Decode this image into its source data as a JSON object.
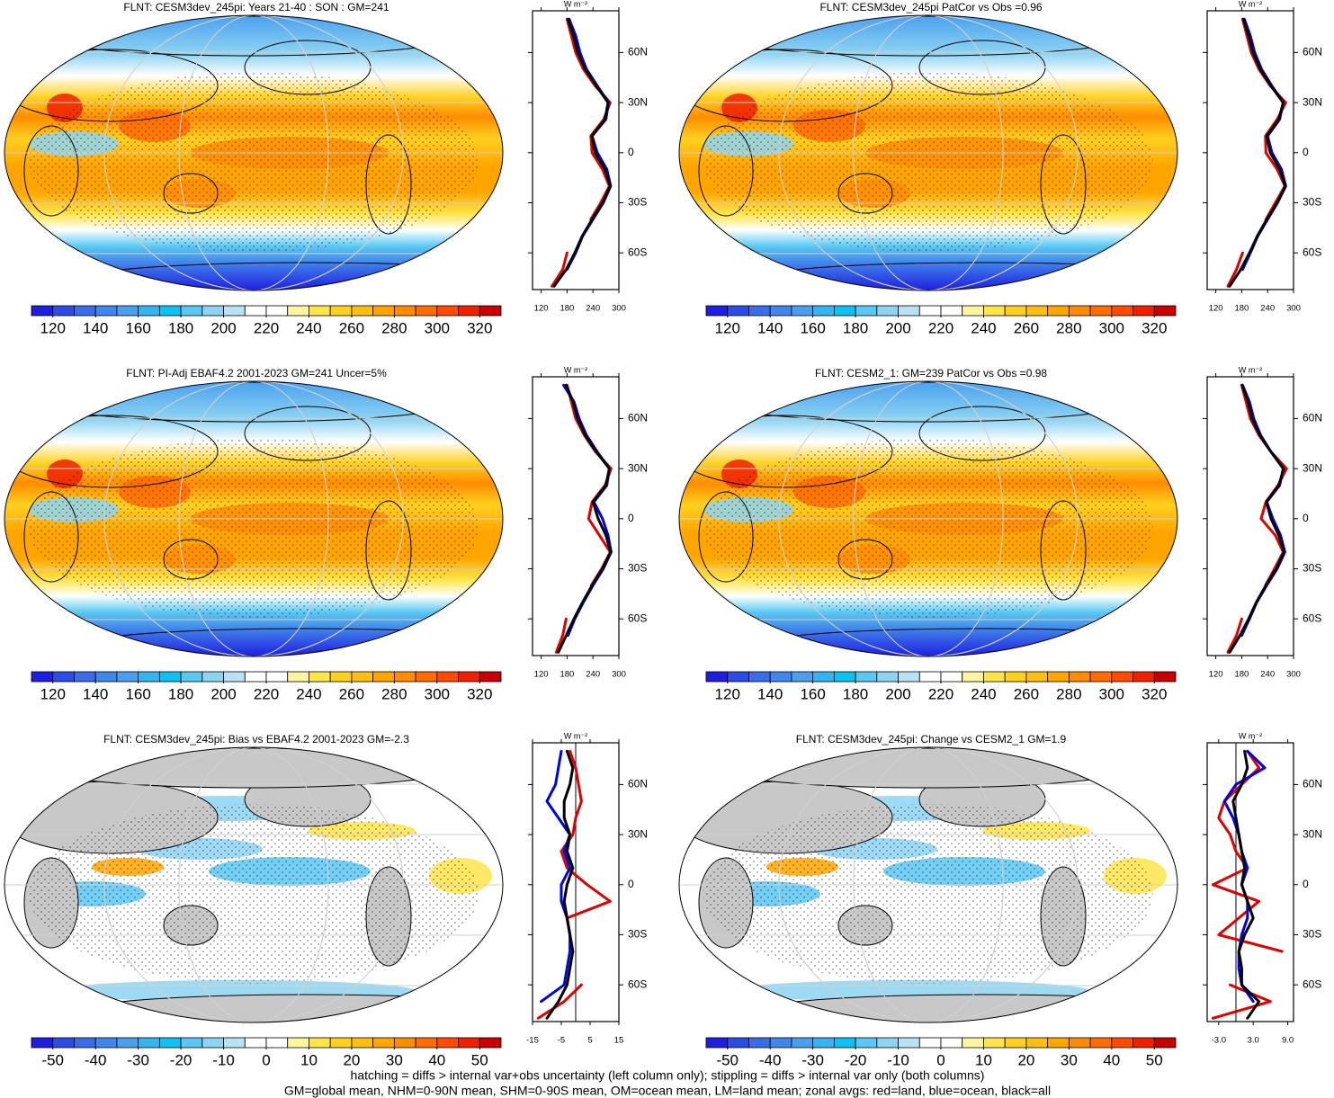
{
  "chart_data": [
    {
      "type": "map",
      "title": "FLNT: CESM3dev_245pi: Years 21-40 : SON : GM=241",
      "colorbar": {
        "lim": [
          110,
          330
        ],
        "ticks": [
          120,
          140,
          160,
          180,
          200,
          220,
          240,
          260,
          280,
          300,
          320
        ],
        "colors": [
          "#1e1ee0",
          "#2b4de6",
          "#3a6ee8",
          "#3f88ea",
          "#4aa0ee",
          "#36b4f0",
          "#10c0f0",
          "#5ac8f2",
          "#8ed4f2",
          "#b8e2f6",
          "#ffffff",
          "#ffffff",
          "#fff5a0",
          "#ffe44a",
          "#ffd020",
          "#ffbe14",
          "#ffa500",
          "#ff8c00",
          "#ff6c00",
          "#ff4a00",
          "#f02000",
          "#c80000"
        ]
      }
    },
    {
      "type": "line",
      "unit_label": "W m⁻²",
      "x": [
        -80,
        -70,
        -60,
        -50,
        -40,
        -30,
        -20,
        -10,
        0,
        10,
        20,
        30,
        40,
        50,
        60,
        70,
        80
      ],
      "xlim": [
        -82,
        85
      ],
      "xticks": [
        {
          "value": -60,
          "label": "60S"
        },
        {
          "value": -30,
          "label": "30S"
        },
        0,
        {
          "value": 30,
          "label": "30N"
        },
        {
          "value": 60,
          "label": "60N"
        }
      ],
      "ylim": [
        100,
        300
      ],
      "yticks": [
        120,
        180,
        240,
        300
      ],
      "series": [
        {
          "color": "#e00000",
          "values": [
            145,
            170,
            180,
            null,
            235,
            258,
            278,
            262,
            238,
            235,
            265,
            280,
            245,
            218,
            200,
            190,
            180
          ]
        },
        {
          "color": "#0000e0",
          "values": [
            null,
            180,
            200,
            216,
            240,
            264,
            281,
            272,
            250,
            238,
            270,
            276,
            250,
            225,
            210,
            200,
            185
          ]
        },
        {
          "color": "#000000",
          "values": [
            150,
            178,
            198,
            215,
            238,
            262,
            280,
            268,
            245,
            238,
            268,
            275,
            248,
            222,
            205,
            195,
            182
          ]
        }
      ]
    },
    {
      "type": "map",
      "title": "FLNT: CESM3dev_245pi PatCor vs Obs =0.96",
      "colorbar": {
        "lim": [
          110,
          330
        ],
        "ticks": [
          120,
          140,
          160,
          180,
          200,
          220,
          240,
          260,
          280,
          300,
          320
        ],
        "colors": [
          "#1e1ee0",
          "#2b4de6",
          "#3a6ee8",
          "#3f88ea",
          "#4aa0ee",
          "#36b4f0",
          "#10c0f0",
          "#5ac8f2",
          "#8ed4f2",
          "#b8e2f6",
          "#ffffff",
          "#ffffff",
          "#fff5a0",
          "#ffe44a",
          "#ffd020",
          "#ffbe14",
          "#ffa500",
          "#ff8c00",
          "#ff6c00",
          "#ff4a00",
          "#f02000",
          "#c80000"
        ]
      }
    },
    {
      "type": "line",
      "unit_label": "W m⁻²",
      "x": [
        -80,
        -70,
        -60,
        -50,
        -40,
        -30,
        -20,
        -10,
        0,
        10,
        20,
        30,
        40,
        50,
        60,
        70,
        80
      ],
      "xlim": [
        -82,
        85
      ],
      "xticks": [
        {
          "value": -60,
          "label": "60S"
        },
        {
          "value": -30,
          "label": "30S"
        },
        0,
        {
          "value": 30,
          "label": "30N"
        },
        {
          "value": 60,
          "label": "60N"
        }
      ],
      "ylim": [
        100,
        300
      ],
      "yticks": [
        120,
        180,
        240,
        300
      ],
      "series": [
        {
          "color": "#e00000",
          "values": [
            148,
            168,
            182,
            null,
            236,
            258,
            280,
            262,
            236,
            235,
            262,
            282,
            246,
            220,
            202,
            192,
            182
          ]
        },
        {
          "color": "#0000e0",
          "values": [
            null,
            182,
            200,
            217,
            240,
            263,
            282,
            272,
            250,
            240,
            268,
            276,
            250,
            226,
            210,
            200,
            186
          ]
        },
        {
          "color": "#000000",
          "values": [
            152,
            178,
            198,
            216,
            238,
            262,
            281,
            268,
            246,
            238,
            266,
            276,
            248,
            223,
            206,
            196,
            184
          ]
        }
      ]
    },
    {
      "type": "map",
      "title": "FLNT: PI-Adj EBAF4.2 2001-2023 GM=241 Uncer=5%",
      "colorbar": {
        "lim": [
          110,
          330
        ],
        "ticks": [
          120,
          140,
          160,
          180,
          200,
          220,
          240,
          260,
          280,
          300,
          320
        ],
        "colors": [
          "#1e1ee0",
          "#2b4de6",
          "#3a6ee8",
          "#3f88ea",
          "#4aa0ee",
          "#36b4f0",
          "#10c0f0",
          "#5ac8f2",
          "#8ed4f2",
          "#b8e2f6",
          "#ffffff",
          "#ffffff",
          "#fff5a0",
          "#ffe44a",
          "#ffd020",
          "#ffbe14",
          "#ffa500",
          "#ff8c00",
          "#ff6c00",
          "#ff4a00",
          "#f02000",
          "#c80000"
        ]
      }
    },
    {
      "type": "line",
      "unit_label": "W m⁻²",
      "x": [
        -80,
        -70,
        -60,
        -50,
        -40,
        -30,
        -20,
        -10,
        0,
        10,
        20,
        30,
        40,
        50,
        60,
        70,
        80
      ],
      "xlim": [
        -82,
        85
      ],
      "xticks": [
        {
          "value": -60,
          "label": "60S"
        },
        {
          "value": -30,
          "label": "30S"
        },
        0,
        {
          "value": 30,
          "label": "30N"
        },
        {
          "value": 60,
          "label": "60N"
        }
      ],
      "ylim": [
        100,
        300
      ],
      "yticks": [
        120,
        180,
        240,
        300
      ],
      "series": [
        {
          "color": "#e00000",
          "values": [
            155,
            170,
            178,
            null,
            236,
            260,
            280,
            255,
            230,
            238,
            268,
            282,
            246,
            220,
            200,
            190,
            180
          ]
        },
        {
          "color": "#0000e0",
          "values": [
            null,
            182,
            198,
            218,
            240,
            264,
            282,
            275,
            262,
            242,
            272,
            278,
            250,
            225,
            208,
            196,
            172
          ]
        },
        {
          "color": "#000000",
          "values": [
            160,
            178,
            196,
            216,
            238,
            262,
            281,
            270,
            252,
            240,
            270,
            278,
            248,
            222,
            204,
            194,
            178
          ]
        }
      ]
    },
    {
      "type": "map",
      "title": "FLNT: CESM2_1: GM=239 PatCor vs Obs =0.98",
      "colorbar": {
        "lim": [
          110,
          330
        ],
        "ticks": [
          120,
          140,
          160,
          180,
          200,
          220,
          240,
          260,
          280,
          300,
          320
        ],
        "colors": [
          "#1e1ee0",
          "#2b4de6",
          "#3a6ee8",
          "#3f88ea",
          "#4aa0ee",
          "#36b4f0",
          "#10c0f0",
          "#5ac8f2",
          "#8ed4f2",
          "#b8e2f6",
          "#ffffff",
          "#ffffff",
          "#fff5a0",
          "#ffe44a",
          "#ffd020",
          "#ffbe14",
          "#ffa500",
          "#ff8c00",
          "#ff6c00",
          "#ff4a00",
          "#f02000",
          "#c80000"
        ]
      }
    },
    {
      "type": "line",
      "unit_label": "W m⁻²",
      "x": [
        -80,
        -70,
        -60,
        -50,
        -40,
        -30,
        -20,
        -10,
        0,
        10,
        20,
        30,
        40,
        50,
        60,
        70,
        80
      ],
      "xlim": [
        -82,
        85
      ],
      "xticks": [
        {
          "value": -60,
          "label": "60S"
        },
        {
          "value": -30,
          "label": "30S"
        },
        0,
        {
          "value": 30,
          "label": "30N"
        },
        {
          "value": 60,
          "label": "60N"
        }
      ],
      "ylim": [
        100,
        300
      ],
      "yticks": [
        120,
        180,
        240,
        300
      ],
      "series": [
        {
          "color": "#e00000",
          "values": [
            148,
            168,
            180,
            null,
            235,
            256,
            276,
            258,
            225,
            236,
            264,
            284,
            248,
            220,
            200,
            190,
            180
          ]
        },
        {
          "color": "#0000e0",
          "values": [
            null,
            180,
            198,
            215,
            238,
            262,
            280,
            270,
            252,
            238,
            268,
            276,
            248,
            224,
            208,
            198,
            182
          ]
        },
        {
          "color": "#000000",
          "values": [
            152,
            176,
            196,
            214,
            236,
            260,
            278,
            266,
            248,
            237,
            266,
            277,
            248,
            222,
            204,
            195,
            181
          ]
        }
      ]
    },
    {
      "type": "map",
      "title": "FLNT: CESM3dev_245pi: Bias vs EBAF4.2 2001-2023  GM=-2.3",
      "colorbar": {
        "lim": [
          -55,
          55
        ],
        "ticks": [
          -50,
          -40,
          -30,
          -20,
          -10,
          0,
          10,
          20,
          30,
          40,
          50
        ],
        "colors": [
          "#1e1ee0",
          "#2b4de6",
          "#3a6ee8",
          "#3f88ea",
          "#4aa0ee",
          "#36b4f0",
          "#10c0f0",
          "#5ac8f2",
          "#8ed4f2",
          "#b8e2f6",
          "#ffffff",
          "#ffffff",
          "#fff5a0",
          "#ffe44a",
          "#ffd020",
          "#ffbe14",
          "#ffa500",
          "#ff8c00",
          "#ff6c00",
          "#ff4a00",
          "#f02000",
          "#c80000"
        ]
      }
    },
    {
      "type": "line",
      "unit_label": "W m⁻²",
      "x": [
        -80,
        -70,
        -60,
        -50,
        -40,
        -30,
        -20,
        -10,
        0,
        10,
        20,
        30,
        40,
        50,
        60,
        70,
        80
      ],
      "xlim": [
        -82,
        85
      ],
      "xticks": [
        {
          "value": -60,
          "label": "60S"
        },
        {
          "value": -30,
          "label": "30S"
        },
        0,
        {
          "value": 30,
          "label": "30N"
        },
        {
          "value": 60,
          "label": "60N"
        }
      ],
      "ylim": [
        -15,
        15
      ],
      "yticks": [
        -15,
        -5,
        5,
        15
      ],
      "reference_line": 0,
      "series": [
        {
          "color": "#e00000",
          "values": [
            -13,
            -4,
            2,
            null,
            -1,
            -2,
            -3,
            12,
            4,
            -3,
            -5,
            -1,
            0,
            2,
            1,
            0,
            -2
          ]
        },
        {
          "color": "#0000e0",
          "values": [
            null,
            -12,
            -4,
            -3,
            -2,
            -2,
            -3,
            -5,
            -5,
            -2,
            -4,
            -2,
            -6,
            -10,
            -7,
            -6,
            -5
          ]
        },
        {
          "color": "#000000",
          "values": [
            -10,
            -6,
            -3,
            -2,
            -1,
            -2,
            -3,
            -4,
            -3,
            -1,
            -3,
            -2,
            -4,
            -4,
            -2,
            -1,
            -3
          ]
        }
      ]
    },
    {
      "type": "map",
      "title": "FLNT: CESM3dev_245pi: Change vs CESM2_1 GM=1.9",
      "colorbar": {
        "lim": [
          -55,
          55
        ],
        "ticks": [
          -50,
          -40,
          -30,
          -20,
          -10,
          0,
          10,
          20,
          30,
          40,
          50
        ],
        "colors": [
          "#1e1ee0",
          "#2b4de6",
          "#3a6ee8",
          "#3f88ea",
          "#4aa0ee",
          "#36b4f0",
          "#10c0f0",
          "#5ac8f2",
          "#8ed4f2",
          "#b8e2f6",
          "#ffffff",
          "#ffffff",
          "#fff5a0",
          "#ffe44a",
          "#ffd020",
          "#ffbe14",
          "#ffa500",
          "#ff8c00",
          "#ff6c00",
          "#ff4a00",
          "#f02000",
          "#c80000"
        ]
      }
    },
    {
      "type": "line",
      "unit_label": "W m⁻²",
      "x": [
        -80,
        -70,
        -60,
        -50,
        -40,
        -30,
        -20,
        -10,
        0,
        10,
        20,
        30,
        40,
        50,
        60,
        70,
        80
      ],
      "xlim": [
        -82,
        85
      ],
      "xticks": [
        {
          "value": -60,
          "label": "60S"
        },
        {
          "value": -30,
          "label": "30S"
        },
        0,
        {
          "value": 30,
          "label": "30N"
        },
        {
          "value": 60,
          "label": "60N"
        }
      ],
      "ylim": [
        -5,
        10
      ],
      "yticks": [
        {
          "value": -3,
          "label": "-3.0"
        },
        {
          "value": 3,
          "label": "3.0"
        },
        {
          "value": 9,
          "label": "9.0"
        }
      ],
      "reference_line": 0,
      "series": [
        {
          "color": "#e00000",
          "values": [
            -4,
            6,
            -1,
            null,
            8,
            -3,
            0.5,
            4,
            -4,
            2,
            0,
            -1,
            -3,
            -2,
            1,
            4,
            2
          ]
        },
        {
          "color": "#0000e0",
          "values": [
            null,
            3,
            1,
            0.5,
            0.5,
            1,
            2,
            2,
            1,
            2,
            1,
            0.5,
            -0.5,
            -2,
            0,
            5,
            2
          ]
        },
        {
          "color": "#000000",
          "values": [
            2,
            4,
            1,
            1,
            0.5,
            1.5,
            3,
            2,
            1,
            1.5,
            1,
            0.5,
            0,
            -0.5,
            1,
            2,
            1.5
          ]
        }
      ]
    }
  ],
  "notes": [
    "hatching = diffs > internal var+obs uncertainty (left column only); stippling = diffs > internal var only (both columns)",
    "GM=global mean, NHM=0-90N mean, SHM=0-90S mean, OM=ocean mean, LM=land mean; zonal avgs: red=land, blue=ocean, black=all"
  ]
}
